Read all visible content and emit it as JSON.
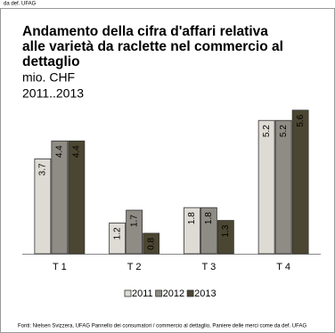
{
  "header_note": "da def. UFAG",
  "chart_data": {
    "type": "bar",
    "title": "Andamento della cifra d'affari relativa alle varietà da raclette nel commercio al dettaglio",
    "subtitle": "mio. CHF",
    "period": "2011..2013",
    "categories": [
      "T 1",
      "T 2",
      "T 3",
      "T 4"
    ],
    "series": [
      {
        "name": "2011",
        "color": "#dedbd5",
        "values": [
          3.7,
          1.2,
          1.8,
          5.2
        ]
      },
      {
        "name": "2012",
        "color": "#8e8c84",
        "values": [
          4.4,
          1.7,
          1.8,
          5.2
        ]
      },
      {
        "name": "2013",
        "color": "#4b4632",
        "values": [
          4.4,
          0.8,
          1.3,
          5.6
        ]
      }
    ],
    "source": "Fonti: Nielsen Svizzera, UFAG Pannello dei consumatori / commercio al dettaglio, Paniere delle merci come da def. UFAG"
  }
}
